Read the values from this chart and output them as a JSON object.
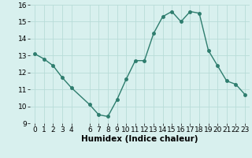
{
  "x": [
    0,
    1,
    2,
    3,
    4,
    6,
    7,
    8,
    9,
    10,
    11,
    12,
    13,
    14,
    15,
    16,
    17,
    18,
    19,
    20,
    21,
    22,
    23
  ],
  "y": [
    13.1,
    12.8,
    12.4,
    11.7,
    11.1,
    10.1,
    9.5,
    9.4,
    10.4,
    11.6,
    12.7,
    12.7,
    14.3,
    15.3,
    15.6,
    15.0,
    15.6,
    15.5,
    13.3,
    12.4,
    11.5,
    11.3,
    10.7
  ],
  "line_color": "#2e7d6e",
  "marker_color": "#2e7d6e",
  "bg_color": "#d8f0ee",
  "grid_color": "#b8dcd8",
  "xlabel": "Humidex (Indice chaleur)",
  "ylim": [
    9,
    16
  ],
  "xlim": [
    -0.5,
    23.5
  ],
  "yticks": [
    9,
    10,
    11,
    12,
    13,
    14,
    15,
    16
  ],
  "xticks": [
    0,
    1,
    2,
    3,
    4,
    6,
    7,
    8,
    9,
    10,
    11,
    12,
    13,
    14,
    15,
    16,
    17,
    18,
    19,
    20,
    21,
    22,
    23
  ],
  "xlabel_fontsize": 7.5,
  "tick_fontsize": 6.5,
  "line_width": 1.0,
  "marker_size": 2.5
}
